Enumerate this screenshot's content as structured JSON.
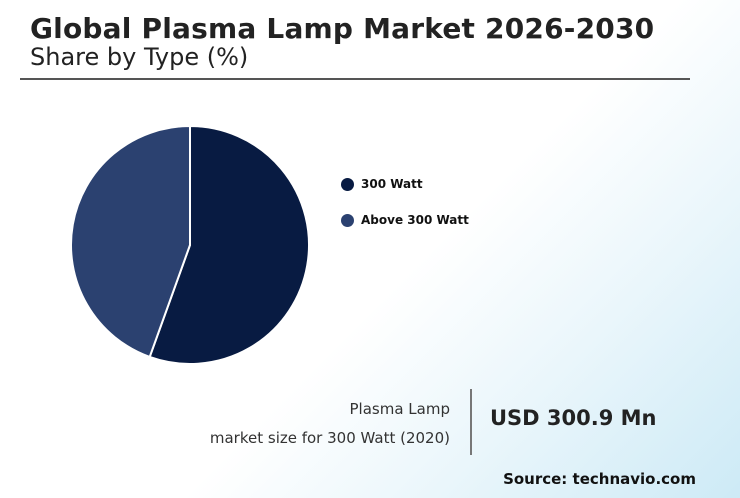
{
  "header": {
    "title": "Global Plasma Lamp Market 2026-2030",
    "subtitle": "Share by Type (%)"
  },
  "chart_data": {
    "type": "pie",
    "title": "Global Plasma Lamp Market 2026-2030",
    "subtitle": "Share by Type (%)",
    "categories": [
      "300 Watt",
      "Above 300 Watt"
    ],
    "values": [
      55.5,
      44.5
    ],
    "colors": [
      "#081b42",
      "#2b4170"
    ],
    "legend": "right"
  },
  "stat": {
    "line1": "Plasma Lamp",
    "line2": "market size for 300 Watt (2020)",
    "value": "USD 300.9 Mn"
  },
  "footer": {
    "source": "Source: technavio.com"
  }
}
